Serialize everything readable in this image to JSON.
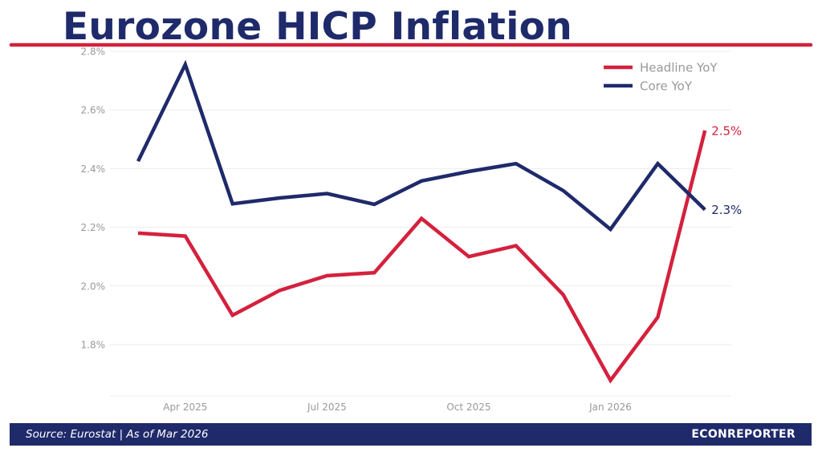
{
  "title": "Eurozone HICP Inflation",
  "colors": {
    "title": "#1f2a6b",
    "accent_rule": "#d4213d",
    "headline": "#d4213d",
    "core": "#1f2a6b",
    "axis_text": "#999999",
    "grid": "#ececec",
    "footer_bg": "#1f2a6b"
  },
  "footer": {
    "source": "Source: Eurostat  |  As of Mar 2026",
    "brand": "ECONREPORTER"
  },
  "chart_data": {
    "type": "line",
    "x": [
      "2025-03",
      "2025-04",
      "2025-05",
      "2025-06",
      "2025-07",
      "2025-08",
      "2025-09",
      "2025-10",
      "2025-11",
      "2025-12",
      "2026-01",
      "2026-02",
      "2026-03"
    ],
    "x_ticks": [
      {
        "x": "2025-04",
        "label": "Apr 2025"
      },
      {
        "x": "2025-07",
        "label": "Jul 2025"
      },
      {
        "x": "2025-10",
        "label": "Oct 2025"
      },
      {
        "x": "2026-01",
        "label": "Jan 2026"
      }
    ],
    "y_ticks": [
      "1.8%",
      "2.0%",
      "2.2%",
      "2.4%",
      "2.6%",
      "2.8%"
    ],
    "y_tick_values": [
      1.8,
      2.0,
      2.2,
      2.4,
      2.6,
      2.8
    ],
    "ylim": [
      1.625,
      2.8
    ],
    "grid": true,
    "legend_position": "top-right",
    "series": [
      {
        "name": "Headline YoY",
        "color": "#d4213d",
        "values": [
          2.18,
          2.17,
          1.9,
          1.985,
          2.035,
          2.045,
          2.23,
          2.1,
          2.137,
          1.97,
          1.678,
          1.893,
          2.53
        ],
        "end_label": "2.5%"
      },
      {
        "name": "Core YoY",
        "color": "#1f2a6b",
        "values": [
          2.425,
          2.755,
          2.28,
          2.3,
          2.315,
          2.278,
          2.358,
          2.39,
          2.417,
          2.325,
          2.193,
          2.417,
          2.26
        ],
        "end_label": "2.3%"
      }
    ]
  }
}
